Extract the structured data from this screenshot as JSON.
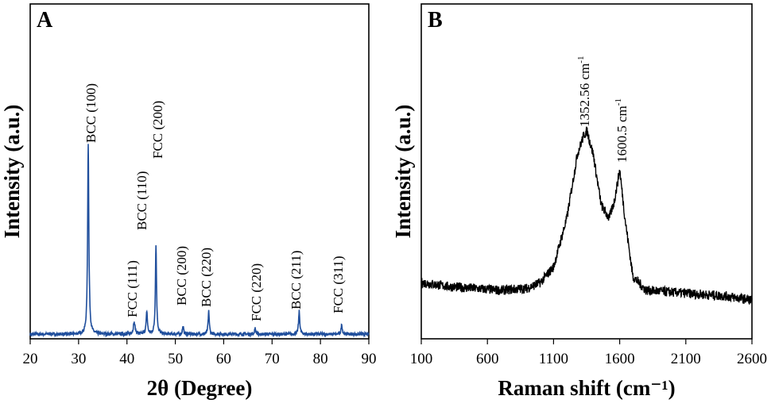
{
  "chart_data": [
    {
      "id": "A",
      "type": "line",
      "panel_label": "A",
      "xlabel": "2θ (Degree)",
      "ylabel": "Intensity (a.u.)",
      "xlim": [
        20,
        90
      ],
      "ylim": [
        0,
        100
      ],
      "xticks": [
        "20",
        "30",
        "40",
        "50",
        "60",
        "70",
        "80",
        "90"
      ],
      "grid": false,
      "line_color": "#1f4e9c",
      "baseline": 2,
      "peaks": [
        {
          "x": 32.0,
          "height": 100,
          "width": 0.3,
          "label": "BCC (100)"
        },
        {
          "x": 41.5,
          "height": 6,
          "width": 0.45,
          "label": "FCC (111)"
        },
        {
          "x": 44.1,
          "height": 12,
          "width": 0.3,
          "label": "BCC (110)"
        },
        {
          "x": 46.0,
          "height": 47,
          "width": 0.28,
          "label": "FCC (200)"
        },
        {
          "x": 51.6,
          "height": 4,
          "width": 0.3,
          "label": "BCC (200)"
        },
        {
          "x": 56.9,
          "height": 12,
          "width": 0.28,
          "label": "BCC (220)"
        },
        {
          "x": 66.5,
          "height": 3,
          "width": 0.3,
          "label": "FCC (220)"
        },
        {
          "x": 75.6,
          "height": 12,
          "width": 0.3,
          "label": "BCC (211)"
        },
        {
          "x": 84.4,
          "height": 5,
          "width": 0.3,
          "label": "FCC (311)"
        }
      ]
    },
    {
      "id": "B",
      "type": "line",
      "panel_label": "B",
      "xlabel": "Raman shift (cm⁻¹)",
      "ylabel": "Intensity (a.u.)",
      "xlim": [
        100,
        2600
      ],
      "ylim": [
        0,
        100
      ],
      "xticks": [
        "100",
        "600",
        "1100",
        "1600",
        "2100",
        "2600"
      ],
      "grid": false,
      "line_color": "#000000",
      "peaks": [
        {
          "x": 1352.56,
          "height": 100,
          "label": "1352.56 cm",
          "label_sup": "-1"
        },
        {
          "x": 1600.5,
          "height": 80,
          "label": "1600.5 cm",
          "label_sup": "-1"
        }
      ],
      "profile": [
        [
          100,
          22
        ],
        [
          300,
          20
        ],
        [
          500,
          19
        ],
        [
          700,
          18
        ],
        [
          900,
          19
        ],
        [
          1000,
          22
        ],
        [
          1100,
          30
        ],
        [
          1200,
          55
        ],
        [
          1280,
          88
        ],
        [
          1330,
          98
        ],
        [
          1352.56,
          100
        ],
        [
          1400,
          88
        ],
        [
          1460,
          62
        ],
        [
          1520,
          55
        ],
        [
          1560,
          64
        ],
        [
          1600.5,
          80
        ],
        [
          1640,
          55
        ],
        [
          1700,
          25
        ],
        [
          1800,
          18
        ],
        [
          2000,
          17
        ],
        [
          2200,
          16
        ],
        [
          2400,
          15
        ],
        [
          2600,
          13
        ]
      ]
    }
  ]
}
